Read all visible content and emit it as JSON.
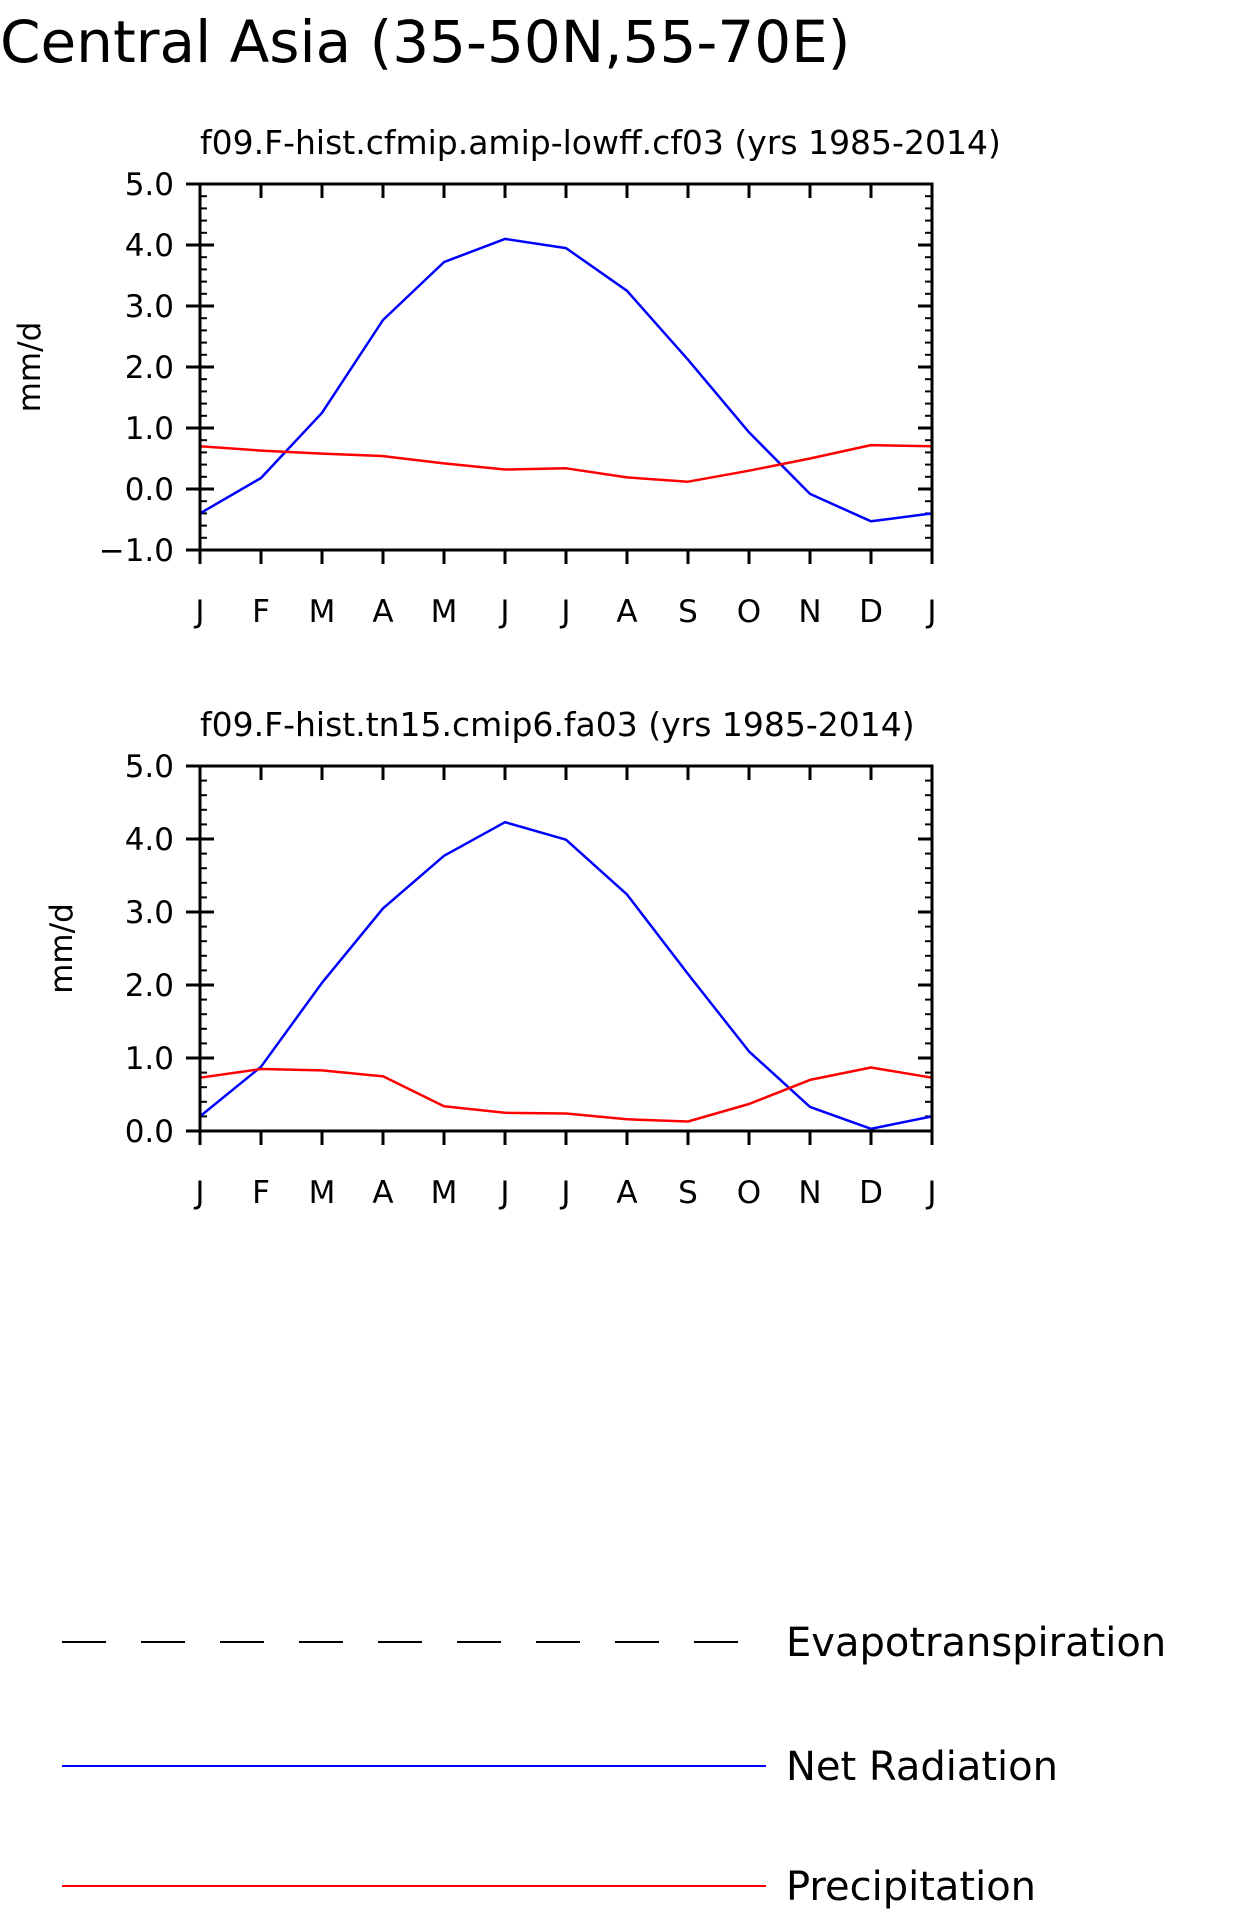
{
  "title": "Central Asia (35-50N,55-70E)",
  "chart_data": [
    {
      "type": "line",
      "title": "f09.F-hist.cfmip.amip-lowff.cf03 (yrs 1985-2014)",
      "xlabel": "",
      "ylabel": "mm/d",
      "categories": [
        "J",
        "F",
        "M",
        "A",
        "M",
        "J",
        "J",
        "A",
        "S",
        "O",
        "N",
        "D",
        "J"
      ],
      "ylim": [
        -1.0,
        5.0
      ],
      "yticks": [
        "5.0",
        "4.0",
        "3.0",
        "2.0",
        "1.0",
        "0.0",
        "-1.0"
      ],
      "series": [
        {
          "name": "Net Radiation",
          "color": "#0000ff",
          "values": [
            -0.4,
            0.18,
            1.25,
            2.77,
            3.72,
            4.1,
            3.95,
            3.25,
            2.12,
            0.93,
            -0.08,
            -0.53,
            -0.4
          ]
        },
        {
          "name": "Precipitation",
          "color": "#ff0000",
          "values": [
            0.7,
            0.63,
            0.58,
            0.54,
            0.42,
            0.32,
            0.34,
            0.19,
            0.12,
            0.3,
            0.5,
            0.72,
            0.7
          ]
        }
      ]
    },
    {
      "type": "line",
      "title": "f09.F-hist.tn15.cmip6.fa03 (yrs 1985-2014)",
      "xlabel": "",
      "ylabel": "mm/d",
      "categories": [
        "J",
        "F",
        "M",
        "A",
        "M",
        "J",
        "J",
        "A",
        "S",
        "O",
        "N",
        "D",
        "J"
      ],
      "ylim": [
        0.0,
        5.0
      ],
      "yticks": [
        "5.0",
        "4.0",
        "3.0",
        "2.0",
        "1.0",
        "0.0"
      ],
      "series": [
        {
          "name": "Net Radiation",
          "color": "#0000ff",
          "values": [
            0.2,
            0.88,
            2.03,
            3.05,
            3.77,
            4.23,
            3.99,
            3.24,
            2.15,
            1.09,
            0.33,
            0.03,
            0.2
          ]
        },
        {
          "name": "Precipitation",
          "color": "#ff0000",
          "values": [
            0.73,
            0.85,
            0.83,
            0.75,
            0.34,
            0.25,
            0.24,
            0.16,
            0.13,
            0.37,
            0.7,
            0.87,
            0.73
          ]
        }
      ]
    }
  ],
  "legend": [
    {
      "label": "Evapotranspiration",
      "color": "#000000",
      "style": "dashed"
    },
    {
      "label": "Net Radiation",
      "color": "#0000ff",
      "style": "solid"
    },
    {
      "label": "Precipitation",
      "color": "#ff0000",
      "style": "solid"
    }
  ]
}
